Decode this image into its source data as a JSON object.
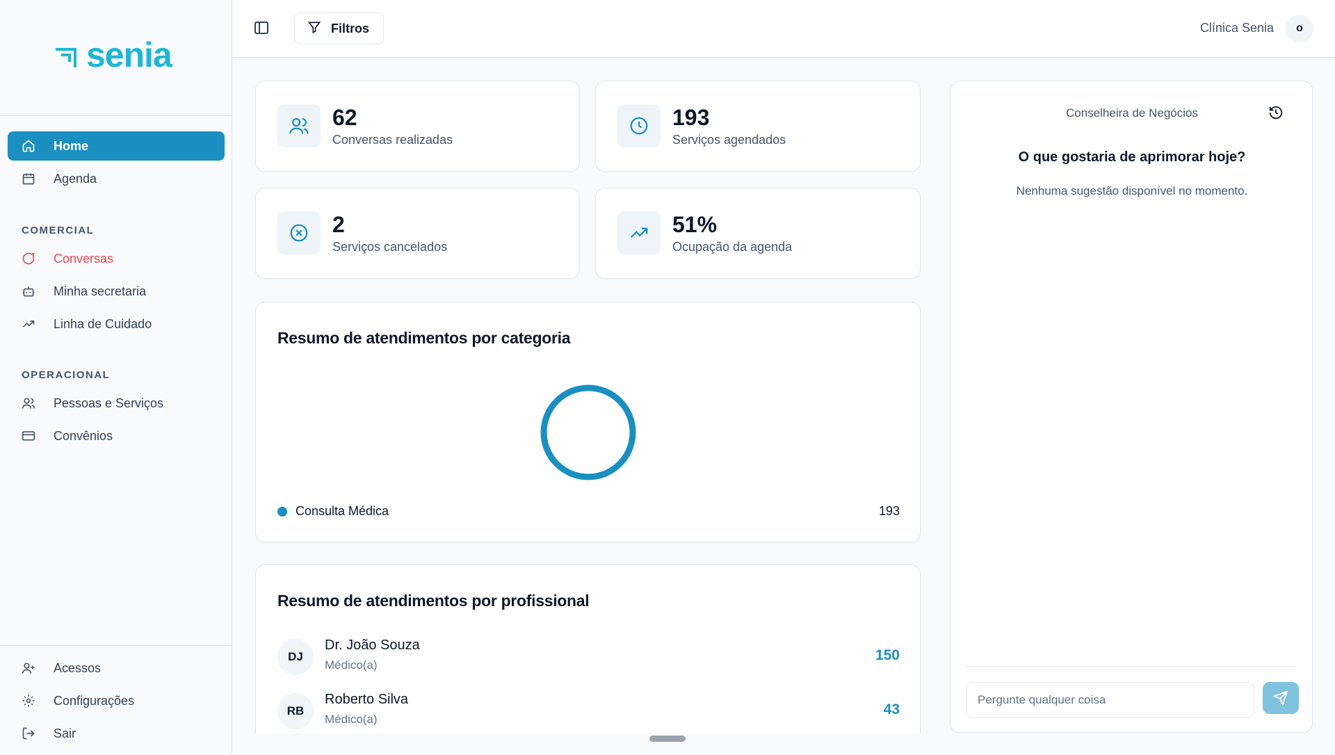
{
  "brand": {
    "name": "senia",
    "color": "#1fb6d6"
  },
  "sidebar": {
    "items_top": [
      {
        "label": "Home",
        "icon": "home-icon",
        "active": true
      },
      {
        "label": "Agenda",
        "icon": "calendar-icon"
      }
    ],
    "section_comercial": "COMERCIAL",
    "items_comercial": [
      {
        "label": "Conversas",
        "icon": "chat-icon"
      },
      {
        "label": "Minha secretaria",
        "icon": "bot-icon"
      },
      {
        "label": "Linha de Cuidado",
        "icon": "trend-icon"
      }
    ],
    "section_operacional": "OPERACIONAL",
    "items_operacional": [
      {
        "label": "Pessoas e Serviços",
        "icon": "users-icon"
      },
      {
        "label": "Convênios",
        "icon": "card-icon"
      }
    ],
    "items_bottom": [
      {
        "label": "Acessos",
        "icon": "user-plus-icon"
      },
      {
        "label": "Configurações",
        "icon": "gear-icon"
      },
      {
        "label": "Sair",
        "icon": "logout-icon"
      }
    ]
  },
  "topbar": {
    "filter_label": "Filtros",
    "clinic_name": "Clínica Senia",
    "avatar_initial": "o"
  },
  "stats": [
    {
      "value": "62",
      "label": "Conversas realizadas",
      "icon": "users-icon"
    },
    {
      "value": "193",
      "label": "Serviços agendados",
      "icon": "clock-icon"
    },
    {
      "value": "2",
      "label": "Serviços cancelados",
      "icon": "x-circle-icon"
    },
    {
      "value": "51%",
      "label": "Ocupação da agenda",
      "icon": "trend-icon"
    }
  ],
  "category_summary": {
    "title": "Resumo de atendimentos por categoria",
    "chart_data": {
      "type": "pie",
      "categories": [
        "Consulta Médica"
      ],
      "values": [
        193
      ]
    },
    "legend": [
      {
        "label": "Consulta Médica",
        "value": "193",
        "color": "#1a8fc0"
      }
    ]
  },
  "professional_summary": {
    "title": "Resumo de atendimentos por profissional",
    "rows": [
      {
        "initials": "DJ",
        "name": "Dr. João Souza",
        "role": "Médico(a)",
        "count": "150"
      },
      {
        "initials": "RB",
        "name": "Roberto Silva",
        "role": "Médico(a)",
        "count": "43"
      }
    ]
  },
  "advisor": {
    "title": "Conselheira de Negócios",
    "question": "O que gostaria de aprimorar hoje?",
    "empty_text": "Nenhuma sugestão disponível no momento.",
    "input_placeholder": "Pergunte qualquer coisa"
  },
  "colors": {
    "accent": "#1a8fc0",
    "danger": "#e5484d"
  }
}
